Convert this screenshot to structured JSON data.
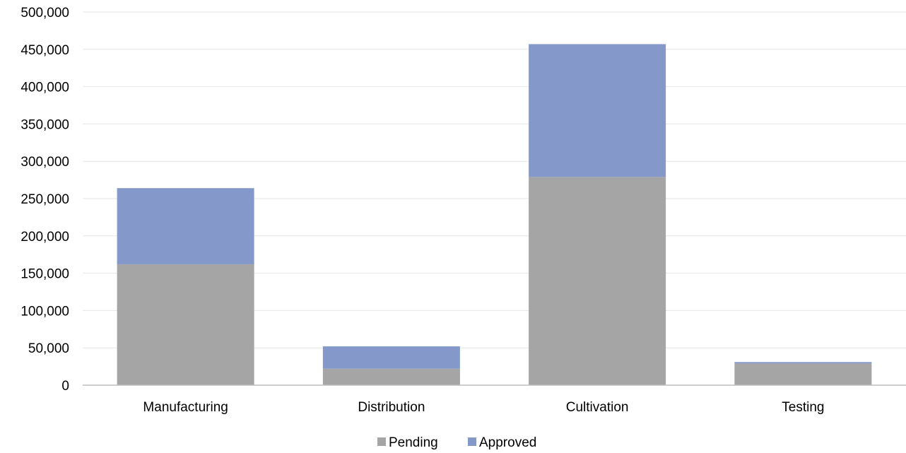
{
  "chart_data": {
    "type": "bar",
    "stacked": true,
    "categories": [
      "Manufacturing",
      "Distribution",
      "Cultivation",
      "Testing"
    ],
    "series": [
      {
        "name": "Pending",
        "values": [
          162000,
          22000,
          279000,
          29000
        ],
        "color": "#a5a5a5"
      },
      {
        "name": "Approved",
        "values": [
          102000,
          30000,
          178000,
          2000
        ],
        "color": "#8499c9"
      }
    ],
    "title": "",
    "xlabel": "",
    "ylabel": "",
    "ylim": [
      0,
      500000
    ],
    "yticks": [
      "0",
      "50,000",
      "100,000",
      "150,000",
      "200,000",
      "250,000",
      "300,000",
      "350,000",
      "400,000",
      "450,000",
      "500,000"
    ],
    "grid": true,
    "legend_position": "bottom-center",
    "gridline_color": "#e6e6e6",
    "axis_color": "#bfbfbf"
  }
}
